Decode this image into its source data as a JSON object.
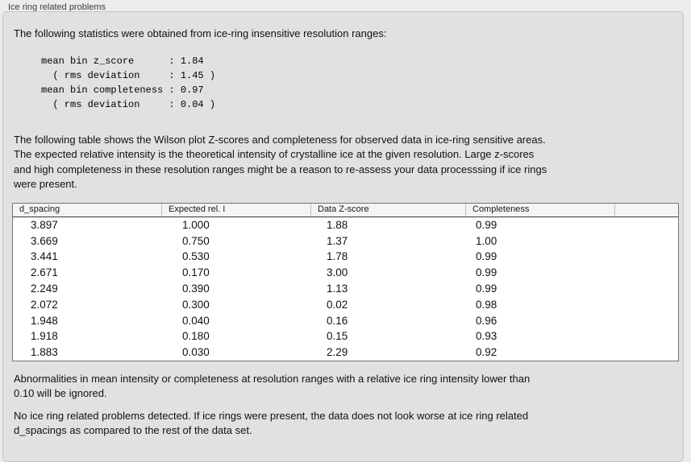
{
  "panel": {
    "title": "Ice ring related problems"
  },
  "intro": "The following statistics were obtained from ice-ring insensitive resolution ranges:",
  "stats_block": "mean bin z_score      : 1.84\n  ( rms deviation     : 1.45 )\nmean bin completeness : 0.97\n  ( rms deviation     : 0.04 )",
  "stats": {
    "mean_bin_z_score": "1.84",
    "z_score_rms_deviation": "1.45",
    "mean_bin_completeness": "0.97",
    "completeness_rms_deviation": "0.04"
  },
  "description": "The following table shows the Wilson plot Z-scores and completeness for observed data in ice-ring sensitive areas.\nThe expected relative intensity is the theoretical intensity of crystalline ice at the given resolution. Large z-scores\nand high completeness in these resolution ranges might be a reason to re-assess your data processsing if ice rings\nwere present.",
  "table": {
    "columns": [
      "d_spacing",
      "Expected rel. I",
      "Data Z-score",
      "Completeness"
    ],
    "rows": [
      [
        "3.897",
        "1.000",
        "1.88",
        "0.99"
      ],
      [
        "3.669",
        "0.750",
        "1.37",
        "1.00"
      ],
      [
        "3.441",
        "0.530",
        "1.78",
        "0.99"
      ],
      [
        "2.671",
        "0.170",
        "3.00",
        "0.99"
      ],
      [
        "2.249",
        "0.390",
        "1.13",
        "0.99"
      ],
      [
        "2.072",
        "0.300",
        "0.02",
        "0.98"
      ],
      [
        "1.948",
        "0.040",
        "0.16",
        "0.96"
      ],
      [
        "1.918",
        "0.180",
        "0.15",
        "0.93"
      ],
      [
        "1.883",
        "0.030",
        "2.29",
        "0.92"
      ]
    ]
  },
  "note_ignore": "Abnormalities in mean intensity or completeness at resolution ranges with a relative ice ring intensity lower than\n0.10 will be ignored.",
  "conclusion": "No ice ring related problems detected. If ice rings were present, the data does not look worse at ice ring related\nd_spacings as compared to the rest of the data set.",
  "colors": {
    "page_background": "#ececec",
    "panel_background": "#e1e1e1",
    "panel_border": "#c6c6c6",
    "table_border": "#737373",
    "table_header_background": "#f4f4f4",
    "text": "#111111"
  }
}
